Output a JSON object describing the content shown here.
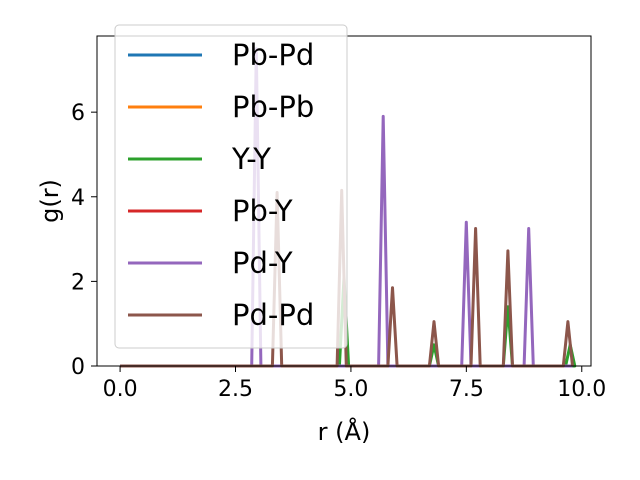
{
  "chart_data": {
    "type": "line",
    "xlabel": "r (Å)",
    "ylabel": "g(r)",
    "xlim": [
      -0.5,
      10.2
    ],
    "ylim": [
      0,
      7.8
    ],
    "xticks": [
      "0.0",
      "2.5",
      "5.0",
      "7.5",
      "10.0"
    ],
    "yticks": [
      "0",
      "2",
      "4",
      "6"
    ],
    "grid": false,
    "legend_position": "top-left",
    "series": [
      {
        "name": "Pb-Pd",
        "color": "#1f77b4",
        "peaks": []
      },
      {
        "name": "Pb-Pb",
        "color": "#ff7f0e",
        "peaks": []
      },
      {
        "name": "Y-Y",
        "color": "#2ca02c",
        "peaks": [
          [
            4.85,
            2.1
          ],
          [
            6.8,
            0.5
          ],
          [
            8.4,
            1.4
          ],
          [
            9.75,
            0.5
          ]
        ]
      },
      {
        "name": "Pb-Y",
        "color": "#d62728",
        "peaks": []
      },
      {
        "name": "Pd-Y",
        "color": "#9467bd",
        "peaks": [
          [
            2.95,
            7.5
          ],
          [
            5.7,
            5.9
          ],
          [
            7.5,
            3.4
          ],
          [
            8.85,
            3.25
          ]
        ]
      },
      {
        "name": "Pd-Pd",
        "color": "#8c564b",
        "peaks": [
          [
            3.4,
            4.1
          ],
          [
            4.8,
            4.15
          ],
          [
            5.9,
            1.85
          ],
          [
            6.8,
            1.05
          ],
          [
            7.7,
            3.25
          ],
          [
            8.4,
            2.72
          ],
          [
            9.7,
            1.05
          ]
        ]
      }
    ]
  }
}
